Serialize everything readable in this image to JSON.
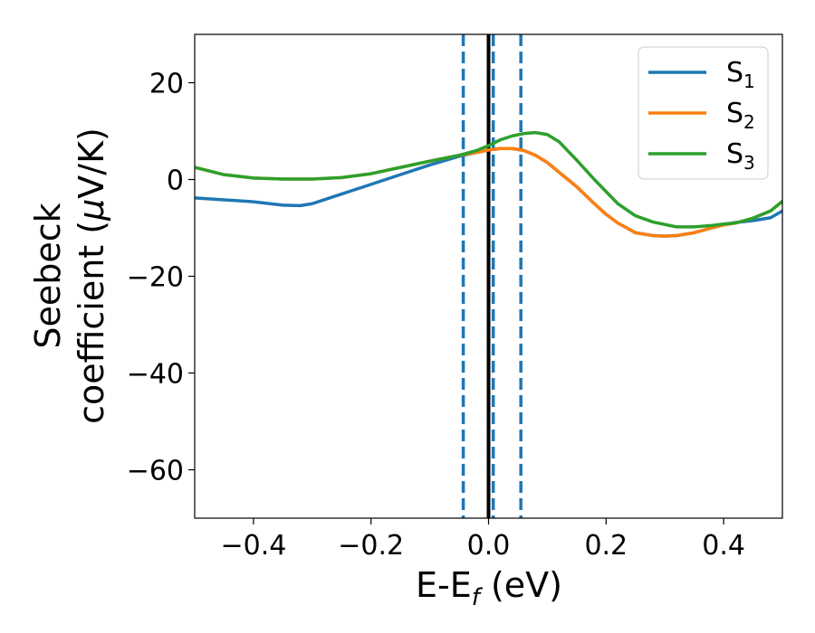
{
  "chart_data": {
    "type": "line",
    "ylabel_line1": "Seebeck",
    "ylabel_line2_prefix": "coefficient  (",
    "ylabel_mu": "μ",
    "ylabel_line2_suffix": "V/K)",
    "xlabel_prefix": "E-E",
    "xlabel_sub": "f",
    "xlabel_suffix": " (eV)",
    "xlim": [
      -0.5,
      0.5
    ],
    "ylim": [
      -70,
      30
    ],
    "xticks": [
      {
        "value": -0.4,
        "label": "−0.4"
      },
      {
        "value": -0.2,
        "label": "−0.2"
      },
      {
        "value": 0.0,
        "label": "0.0"
      },
      {
        "value": 0.2,
        "label": "0.2"
      },
      {
        "value": 0.4,
        "label": "0.4"
      }
    ],
    "yticks": [
      {
        "value": 20,
        "label": "20"
      },
      {
        "value": 0,
        "label": "0"
      },
      {
        "value": -20,
        "label": "−20"
      },
      {
        "value": -40,
        "label": "−40"
      },
      {
        "value": -60,
        "label": "−60"
      }
    ],
    "grid": false,
    "legend_position": "top-right",
    "vlines": [
      {
        "x": 0.0,
        "style": "solid",
        "color": "#000000"
      },
      {
        "x": -0.043,
        "style": "dashed",
        "color": "#1f77b4"
      },
      {
        "x": 0.008,
        "style": "dashed",
        "color": "#1f77b4"
      },
      {
        "x": 0.055,
        "style": "dashed",
        "color": "#1f77b4"
      }
    ],
    "series": [
      {
        "name_base": "S",
        "name_sub": "1",
        "color": "#1f77b4",
        "x": [
          -0.5,
          -0.45,
          -0.4,
          -0.35,
          -0.32,
          -0.3,
          -0.27,
          -0.25,
          -0.2,
          -0.15,
          -0.1,
          -0.05,
          -0.02,
          0.0,
          0.02,
          0.04,
          0.06,
          0.08,
          0.1,
          0.12,
          0.15,
          0.18,
          0.2,
          0.22,
          0.25,
          0.28,
          0.3,
          0.32,
          0.35,
          0.38,
          0.4,
          0.42,
          0.45,
          0.48,
          0.5
        ],
        "y": [
          -3.8,
          -4.2,
          -4.6,
          -5.3,
          -5.4,
          -5.0,
          -3.8,
          -3.0,
          -1.0,
          1.0,
          3.0,
          4.8,
          5.6,
          6.1,
          6.4,
          6.4,
          6.0,
          5.0,
          3.5,
          1.5,
          -1.5,
          -5.0,
          -7.2,
          -9.0,
          -11.0,
          -11.6,
          -11.7,
          -11.6,
          -11.0,
          -10.0,
          -9.3,
          -8.9,
          -8.5,
          -7.9,
          -6.5
        ]
      },
      {
        "name_base": "S",
        "name_sub": "2",
        "color": "#ff7f0e",
        "x": [
          -0.5,
          -0.45,
          -0.4,
          -0.35,
          -0.3,
          -0.25,
          -0.2,
          -0.15,
          -0.1,
          -0.05,
          -0.02,
          0.0,
          0.02,
          0.04,
          0.06,
          0.08,
          0.1,
          0.12,
          0.15,
          0.18,
          0.2,
          0.22,
          0.25,
          0.28,
          0.3,
          0.32,
          0.35,
          0.38,
          0.4,
          0.42,
          0.45,
          0.48,
          0.5
        ],
        "y": [
          2.5,
          1.0,
          0.3,
          0.1,
          0.1,
          0.4,
          1.2,
          2.5,
          3.8,
          5.0,
          5.6,
          6.1,
          6.4,
          6.4,
          6.0,
          5.0,
          3.5,
          1.5,
          -1.5,
          -5.0,
          -7.2,
          -9.0,
          -11.0,
          -11.6,
          -11.7,
          -11.6,
          -11.0,
          -10.0,
          -9.4,
          -9.0,
          -8.0,
          -6.5,
          -4.5
        ]
      },
      {
        "name_base": "S",
        "name_sub": "3",
        "color": "#2ca02c",
        "x": [
          -0.5,
          -0.45,
          -0.4,
          -0.35,
          -0.3,
          -0.25,
          -0.2,
          -0.15,
          -0.1,
          -0.05,
          -0.02,
          0.0,
          0.02,
          0.04,
          0.06,
          0.08,
          0.1,
          0.12,
          0.15,
          0.18,
          0.2,
          0.22,
          0.25,
          0.28,
          0.3,
          0.32,
          0.35,
          0.38,
          0.4,
          0.42,
          0.45,
          0.48,
          0.5
        ],
        "y": [
          2.5,
          1.0,
          0.3,
          0.1,
          0.1,
          0.4,
          1.2,
          2.5,
          3.8,
          5.0,
          6.0,
          7.0,
          8.2,
          9.0,
          9.5,
          9.7,
          9.3,
          7.8,
          4.0,
          0.0,
          -2.5,
          -5.0,
          -7.5,
          -8.8,
          -9.3,
          -9.8,
          -9.8,
          -9.5,
          -9.2,
          -9.0,
          -8.0,
          -6.5,
          -4.5
        ]
      }
    ]
  }
}
